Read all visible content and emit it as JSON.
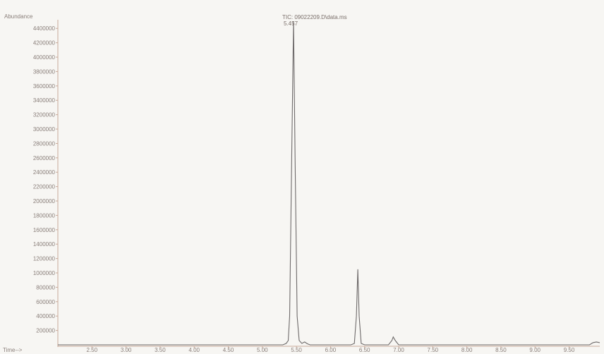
{
  "chart_data": {
    "type": "line",
    "title": "TIC: 09022209.D\\data.ms",
    "ylabel": "Abundance",
    "xlabel": "Time-->",
    "peak_label": "5.457",
    "xlim": [
      2.0,
      9.95
    ],
    "ylim": [
      0,
      4520000
    ],
    "x_ticks": [
      "2.50",
      "3.00",
      "3.50",
      "4.00",
      "4.50",
      "5.00",
      "5.50",
      "6.00",
      "6.50",
      "7.00",
      "7.50",
      "8.00",
      "8.50",
      "9.00",
      "9.50"
    ],
    "y_ticks": [
      "200000",
      "400000",
      "600000",
      "800000",
      "1000000",
      "1200000",
      "1400000",
      "1600000",
      "1800000",
      "2000000",
      "2200000",
      "2400000",
      "2600000",
      "2800000",
      "3000000",
      "3200000",
      "3400000",
      "3600000",
      "3800000",
      "4000000",
      "4200000",
      "4400000"
    ],
    "series": [
      {
        "x": [
          2.0,
          5.3,
          5.35,
          5.38,
          5.4,
          5.43,
          5.457,
          5.48,
          5.51,
          5.54,
          5.58,
          5.62,
          5.66,
          5.7,
          6.3,
          6.35,
          6.38,
          6.4,
          6.42,
          6.45,
          6.5,
          6.85,
          6.9,
          6.92,
          6.95,
          7.0,
          9.8,
          9.85,
          9.9,
          9.95
        ],
        "y": [
          0,
          0,
          20000,
          60000,
          400000,
          2600000,
          4500000,
          2600000,
          400000,
          60000,
          20000,
          40000,
          15000,
          0,
          0,
          20000,
          400000,
          1050000,
          400000,
          20000,
          0,
          0,
          60000,
          110000,
          60000,
          0,
          0,
          30000,
          40000,
          30000
        ]
      }
    ]
  },
  "colors": {
    "trace": "#6e6a6a",
    "axis": "#c8a99a",
    "text": "#8a7f7a",
    "background": "#f7f6f3"
  }
}
